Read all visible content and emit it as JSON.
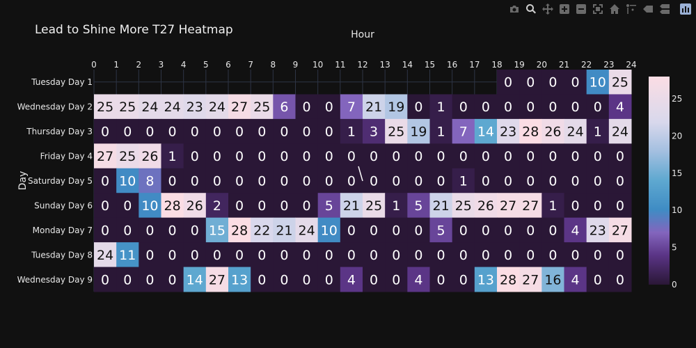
{
  "toolbar": [
    {
      "name": "camera-icon",
      "title": "Download plot as a png",
      "active": false
    },
    {
      "name": "zoom-icon",
      "title": "Zoom",
      "active": true
    },
    {
      "name": "pan-icon",
      "title": "Pan",
      "active": false
    },
    {
      "name": "zoom-in-icon",
      "title": "Zoom in",
      "active": false
    },
    {
      "name": "zoom-out-icon",
      "title": "Zoom out",
      "active": false
    },
    {
      "name": "autoscale-icon",
      "title": "Autoscale",
      "active": false
    },
    {
      "name": "home-icon",
      "title": "Reset axes",
      "active": false
    },
    {
      "name": "spike-lines-icon",
      "title": "Toggle Spike Lines",
      "active": false
    },
    {
      "name": "hover-closest-icon",
      "title": "Show closest data on hover",
      "active": false
    },
    {
      "name": "hover-compare-icon",
      "title": "Compare data on hover",
      "active": false
    },
    {
      "name": "plotly-logo-icon",
      "title": "Produced with Plotly",
      "active": false
    }
  ],
  "chart_data": {
    "type": "heatmap",
    "title": "Lead to Shine More T27 Heatmap",
    "xlabel": "Hour",
    "ylabel": "Day",
    "x_axis_side": "top",
    "x": [
      0,
      1,
      2,
      3,
      4,
      5,
      6,
      7,
      8,
      9,
      10,
      11,
      12,
      13,
      14,
      15,
      16,
      17,
      18,
      19,
      20,
      21,
      22,
      23
    ],
    "x_ticks": [
      0,
      1,
      2,
      3,
      4,
      5,
      6,
      7,
      8,
      9,
      10,
      11,
      12,
      13,
      14,
      15,
      16,
      17,
      18,
      19,
      20,
      21,
      22,
      23,
      24
    ],
    "y": [
      "Tuesday Day 1",
      "Wednesday Day 2",
      "Thursday Day 3",
      "Friday Day 4",
      "Saturday Day 5",
      "Sunday Day 6",
      "Monday Day 7",
      "Tuesday Day 8",
      "Wednesday Day 9"
    ],
    "z": [
      [
        null,
        null,
        null,
        null,
        null,
        null,
        null,
        null,
        null,
        null,
        null,
        null,
        null,
        null,
        null,
        null,
        null,
        null,
        0,
        0,
        0,
        0,
        10,
        25
      ],
      [
        25,
        25,
        24,
        24,
        23,
        24,
        27,
        25,
        6,
        0,
        0,
        7,
        21,
        19,
        0,
        1,
        0,
        0,
        0,
        0,
        0,
        0,
        0,
        4
      ],
      [
        0,
        0,
        0,
        0,
        0,
        0,
        0,
        0,
        0,
        0,
        0,
        1,
        3,
        25,
        19,
        1,
        7,
        14,
        23,
        28,
        26,
        24,
        1,
        24
      ],
      [
        27,
        25,
        26,
        1,
        0,
        0,
        0,
        0,
        0,
        0,
        0,
        0,
        0,
        0,
        0,
        0,
        0,
        0,
        0,
        0,
        0,
        0,
        0,
        0
      ],
      [
        0,
        10,
        8,
        0,
        0,
        0,
        0,
        0,
        0,
        0,
        0,
        0,
        0,
        0,
        0,
        0,
        1,
        0,
        0,
        0,
        0,
        0,
        0,
        0
      ],
      [
        0,
        0,
        10,
        28,
        26,
        2,
        0,
        0,
        0,
        0,
        5,
        21,
        25,
        1,
        5,
        21,
        25,
        26,
        27,
        27,
        1,
        0,
        0,
        0
      ],
      [
        0,
        0,
        0,
        0,
        0,
        15,
        28,
        22,
        21,
        24,
        10,
        0,
        0,
        0,
        0,
        5,
        0,
        0,
        0,
        0,
        0,
        4,
        23,
        27
      ],
      [
        24,
        11,
        0,
        0,
        0,
        0,
        0,
        0,
        0,
        0,
        0,
        0,
        0,
        0,
        0,
        0,
        0,
        0,
        0,
        0,
        0,
        0,
        0,
        0
      ],
      [
        0,
        0,
        0,
        0,
        14,
        27,
        13,
        0,
        0,
        0,
        0,
        4,
        0,
        0,
        4,
        0,
        0,
        13,
        28,
        27,
        16,
        4,
        0,
        0
      ]
    ],
    "zmin": 0,
    "zmax": 28,
    "colorbar_ticks": [
      0,
      5,
      10,
      15,
      20,
      25
    ],
    "colorscale": [
      [
        0,
        "#2a1736"
      ],
      [
        0.14,
        "#5a3485"
      ],
      [
        0.25,
        "#8365bd"
      ],
      [
        0.36,
        "#3f8cc4"
      ],
      [
        0.5,
        "#5ea8d0"
      ],
      [
        0.64,
        "#a3bfe0"
      ],
      [
        0.78,
        "#d8d8ec"
      ],
      [
        1,
        "#fbdde4"
      ]
    ],
    "grid": true,
    "cell_labels": true,
    "background": "#111111",
    "gridline_color": "#2e3545"
  }
}
